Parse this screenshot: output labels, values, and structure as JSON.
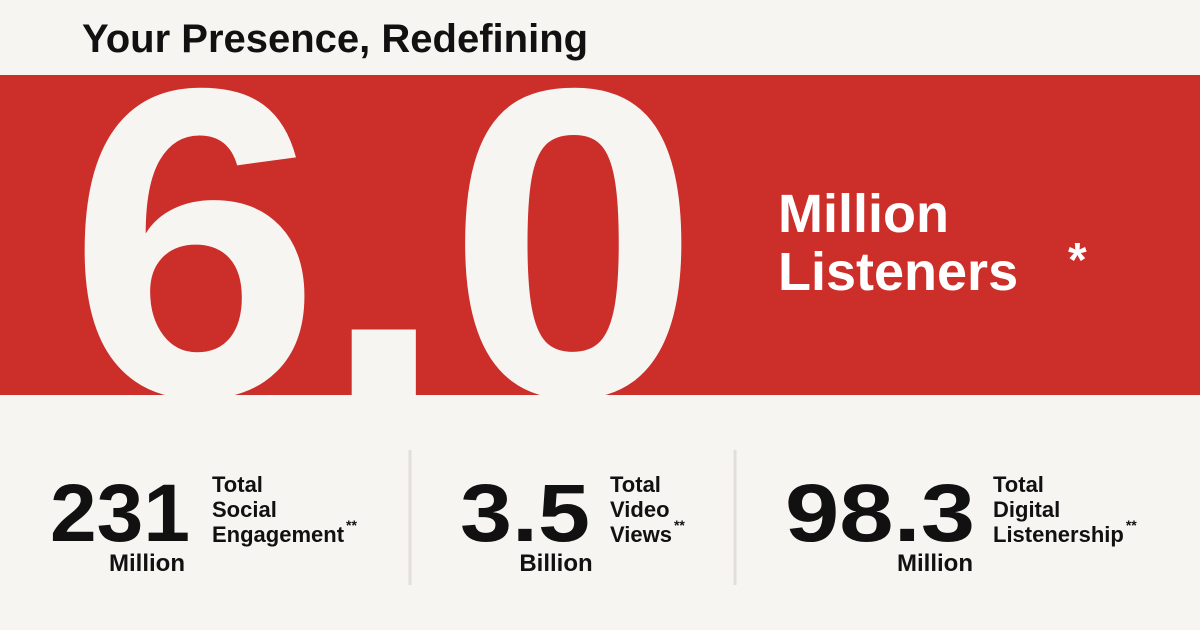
{
  "header": {
    "title": "Your Presence, Redefining"
  },
  "hero": {
    "number": "6.0",
    "unit_lines": [
      "Million",
      "Listeners"
    ],
    "marker": "*"
  },
  "stats": [
    {
      "number": "231",
      "unit": "Million",
      "label_lines": [
        "Total",
        "Social",
        "Engagement"
      ],
      "marker": "**"
    },
    {
      "number": "3.5",
      "unit": "Billion",
      "label_lines": [
        "Total",
        "Video",
        "Views"
      ],
      "marker": "**"
    },
    {
      "number": "98.3",
      "unit": "Million",
      "label_lines": [
        "Total",
        "Digital",
        "Listenership"
      ],
      "marker": "**"
    }
  ]
}
